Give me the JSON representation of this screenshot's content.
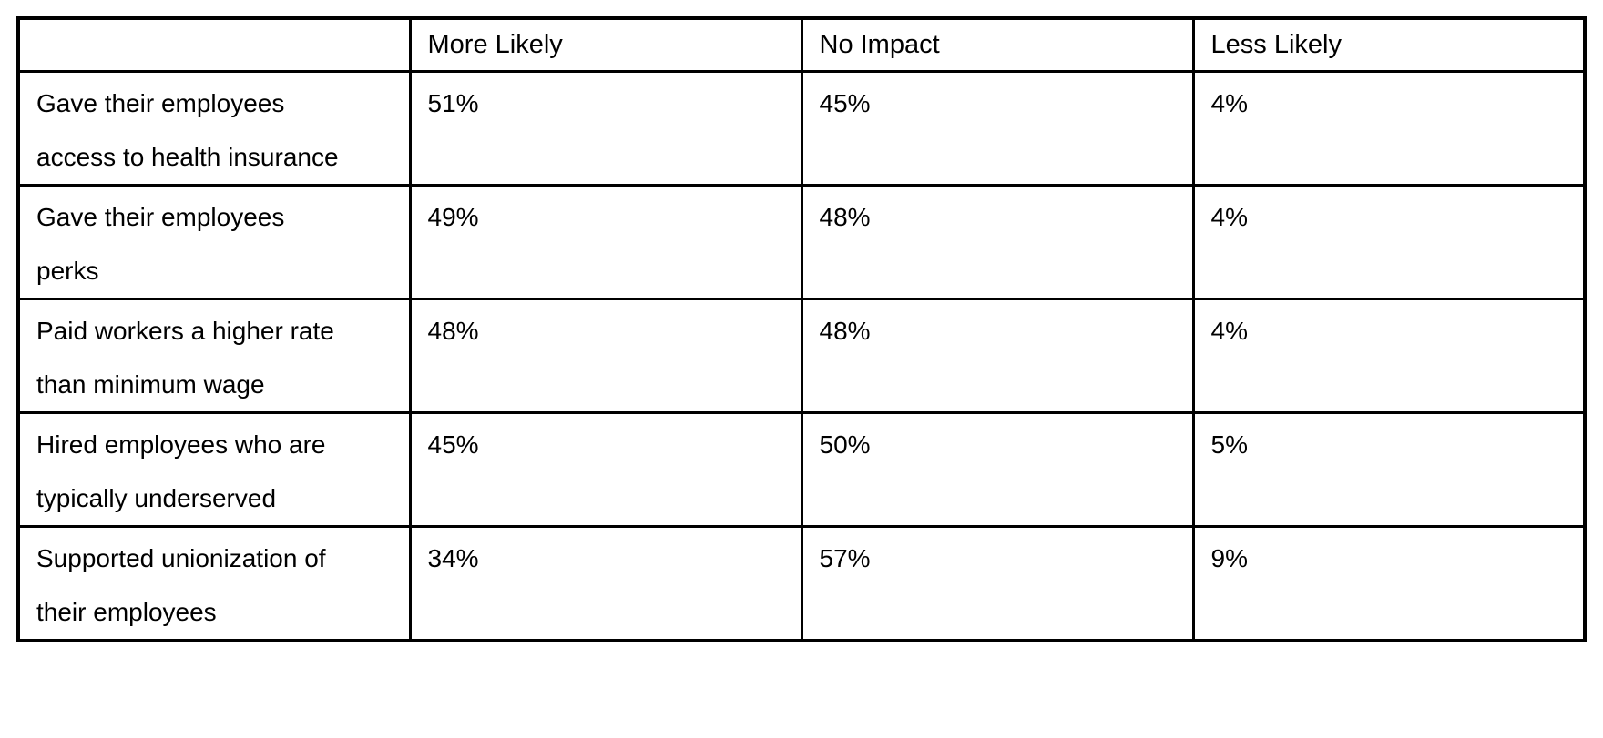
{
  "table": {
    "border_color": "#000000",
    "text_color": "#000000",
    "background_color": "#ffffff",
    "headers": [
      "",
      "More Likely",
      "No Impact",
      "Less Likely"
    ],
    "rows": [
      {
        "label_line1": "Gave their employees",
        "label_line2": "access to health insurance",
        "more_likely": "51%",
        "no_impact": "45%",
        "less_likely": "4%"
      },
      {
        "label_line1": "Gave their employees",
        "label_line2": "perks",
        "more_likely": "49%",
        "no_impact": "48%",
        "less_likely": "4%"
      },
      {
        "label_line1": "Paid workers a higher rate",
        "label_line2": "than minimum wage",
        "more_likely": "48%",
        "no_impact": "48%",
        "less_likely": "4%"
      },
      {
        "label_line1": "Hired employees who are",
        "label_line2": "typically underserved",
        "more_likely": "45%",
        "no_impact": "50%",
        "less_likely": "5%"
      },
      {
        "label_line1": "Supported unionization of",
        "label_line2": "their employees",
        "more_likely": "34%",
        "no_impact": "57%",
        "less_likely": "9%"
      }
    ]
  },
  "chart_data": {
    "type": "table",
    "title": "",
    "columns": [
      "",
      "More Likely",
      "No Impact",
      "Less Likely"
    ],
    "categories": [
      "Gave their employees access to health insurance",
      "Gave their employees perks",
      "Paid workers a higher rate than minimum wage",
      "Hired employees who are typically underserved",
      "Supported unionization of their employees"
    ],
    "series": [
      {
        "name": "More Likely",
        "values": [
          51,
          49,
          48,
          45,
          34
        ]
      },
      {
        "name": "No Impact",
        "values": [
          45,
          48,
          48,
          50,
          57
        ]
      },
      {
        "name": "Less Likely",
        "values": [
          4,
          4,
          4,
          5,
          9
        ]
      }
    ],
    "value_unit": "percent",
    "layout": {
      "grid": "full-borders",
      "header_row": true,
      "first_column_is_category": true
    }
  }
}
